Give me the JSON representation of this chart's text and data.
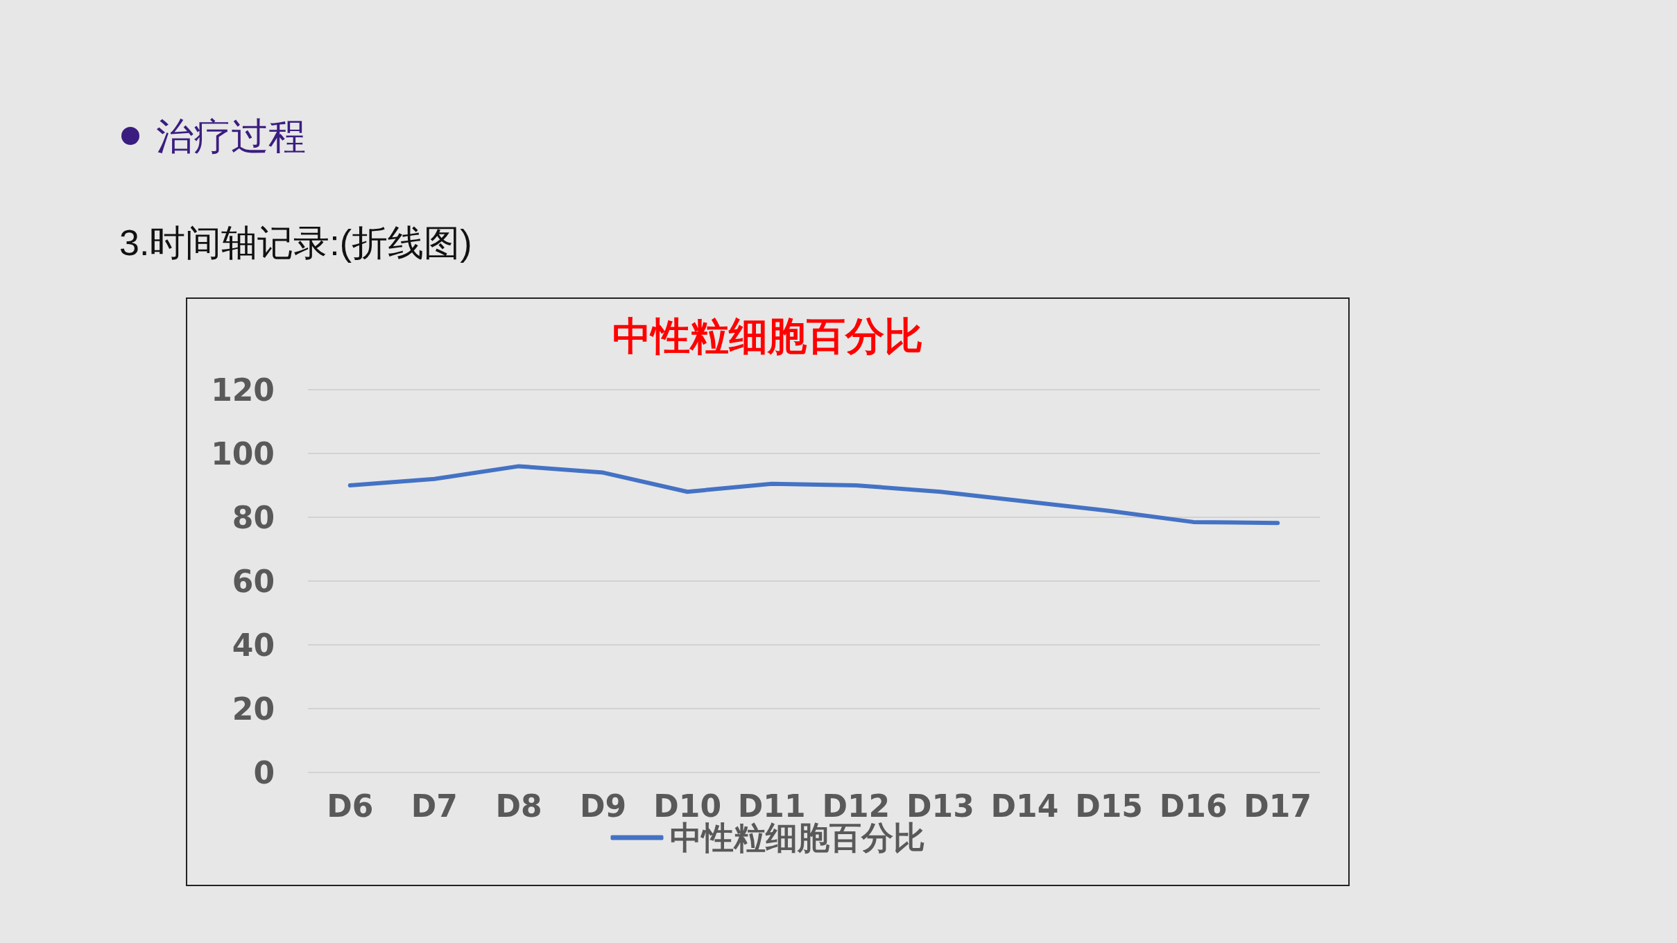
{
  "chart_data": {
    "type": "line",
    "title": "中性粒细胞百分比",
    "annotations": [
      "治疗过程",
      "3.时间轴记录:(折线图)"
    ],
    "categories": [
      "D6",
      "D7",
      "D8",
      "D9",
      "D10",
      "D11",
      "D12",
      "D13",
      "D14",
      "D15",
      "D16",
      "D17"
    ],
    "series": [
      {
        "name": "中性粒细胞百分比",
        "color": "#4472c4",
        "values": [
          90,
          92,
          96,
          94,
          88,
          90.5,
          90,
          88,
          85,
          82,
          78.5,
          78.2
        ]
      }
    ],
    "ylim": [
      0,
      120
    ],
    "yticks": [
      0,
      20,
      40,
      60,
      80,
      100,
      120
    ],
    "grid": "y",
    "legend": "bottom",
    "marker": "none",
    "line_style": "solid"
  }
}
